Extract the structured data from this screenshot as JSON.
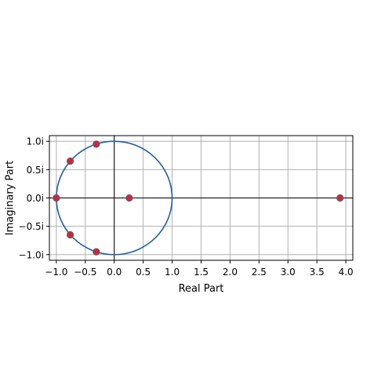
{
  "chart_data": {
    "type": "scatter",
    "title": "",
    "xlabel": "Real Part",
    "ylabel": "Imaginary Part",
    "xlim": [
      -1.12,
      4.12
    ],
    "ylim": [
      -1.1,
      1.1
    ],
    "aspect": "equal",
    "grid": true,
    "legend": "none",
    "x_ticks": [
      {
        "value": -1.0,
        "label": "−1.0"
      },
      {
        "value": -0.5,
        "label": "−0.5"
      },
      {
        "value": 0.0,
        "label": "0.0"
      },
      {
        "value": 0.5,
        "label": "0.5"
      },
      {
        "value": 1.0,
        "label": "1.0"
      },
      {
        "value": 1.5,
        "label": "1.5"
      },
      {
        "value": 2.0,
        "label": "2.0"
      },
      {
        "value": 2.5,
        "label": "2.5"
      },
      {
        "value": 3.0,
        "label": "3.0"
      },
      {
        "value": 3.5,
        "label": "3.5"
      },
      {
        "value": 4.0,
        "label": "4.0"
      }
    ],
    "y_ticks": [
      {
        "value": 1.0,
        "label": "1.0i"
      },
      {
        "value": 0.5,
        "label": "0.5i"
      },
      {
        "value": 0.0,
        "label": "0.0i"
      },
      {
        "value": -0.5,
        "label": "−0.5i"
      },
      {
        "value": -1.0,
        "label": "−1.0i"
      }
    ],
    "unit_circle": {
      "center": [
        0,
        0
      ],
      "radius": 1.0,
      "color": "#1f5fa8"
    },
    "points": {
      "color": "#d62728",
      "edge_color": "#3060a0",
      "data": [
        {
          "x": -0.31,
          "y": 0.95
        },
        {
          "x": -0.76,
          "y": 0.65
        },
        {
          "x": -1.0,
          "y": 0.0
        },
        {
          "x": -0.76,
          "y": -0.65
        },
        {
          "x": -0.31,
          "y": -0.95
        },
        {
          "x": 0.26,
          "y": 0.0
        },
        {
          "x": 3.9,
          "y": 0.0
        }
      ]
    },
    "axes_lines": {
      "color": "#000000"
    },
    "grid_color": "#b0b0b0"
  }
}
